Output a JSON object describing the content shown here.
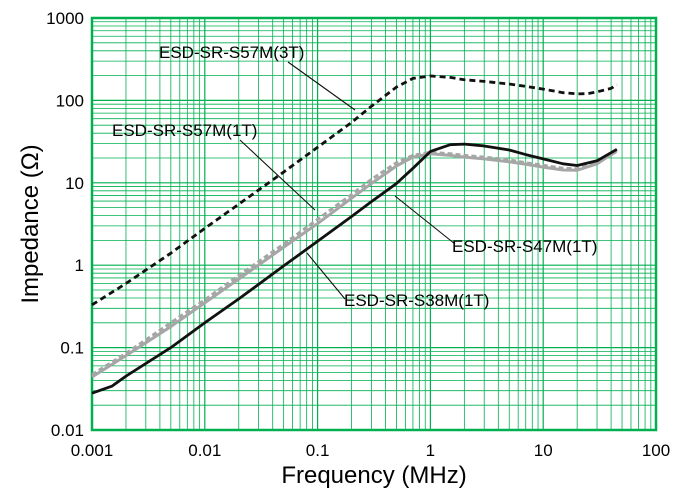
{
  "chart_data": {
    "type": "line",
    "title": "",
    "xlabel": "Frequency (MHz)",
    "ylabel": "Impedance (Ω)",
    "x_scale": "log",
    "y_scale": "log",
    "xlim": [
      0.001,
      100
    ],
    "ylim": [
      0.01,
      1000
    ],
    "grid": true,
    "legend": "none (series labelled by annotations with leader lines)",
    "x_ticks": [
      "0.001",
      "0.01",
      "0.1",
      "1",
      "10",
      "100"
    ],
    "y_ticks": [
      "0.01",
      "0.1",
      "1",
      "10",
      "100",
      "1000"
    ],
    "colors": {
      "grid": "#00B050",
      "frame": "#00B050",
      "black": "#111111",
      "gray_solid": "#A6A6A6",
      "gray_dashed": "#A6A6A6"
    },
    "series": [
      {
        "name": "ESD-SR-S57M(3T)",
        "style": "dashed",
        "color": "black",
        "points": [
          [
            0.001,
            0.33
          ],
          [
            0.002,
            0.6
          ],
          [
            0.005,
            1.4
          ],
          [
            0.01,
            2.8
          ],
          [
            0.02,
            5.5
          ],
          [
            0.05,
            13.5
          ],
          [
            0.1,
            27
          ],
          [
            0.2,
            54
          ],
          [
            0.3,
            85
          ],
          [
            0.5,
            145
          ],
          [
            0.7,
            185
          ],
          [
            1,
            198
          ],
          [
            1.5,
            190
          ],
          [
            2,
            178
          ],
          [
            3,
            170
          ],
          [
            5,
            158
          ],
          [
            7,
            148
          ],
          [
            10,
            137
          ],
          [
            15,
            124
          ],
          [
            20,
            120
          ],
          [
            25,
            121
          ],
          [
            30,
            127
          ],
          [
            40,
            140
          ],
          [
            45,
            155
          ]
        ]
      },
      {
        "name": "ESD-SR-S57M(1T)",
        "style": "dashed",
        "color": "gray",
        "points": [
          [
            0.001,
            0.047
          ],
          [
            0.002,
            0.085
          ],
          [
            0.005,
            0.2
          ],
          [
            0.01,
            0.38
          ],
          [
            0.02,
            0.75
          ],
          [
            0.05,
            1.8
          ],
          [
            0.1,
            3.6
          ],
          [
            0.2,
            7.2
          ],
          [
            0.3,
            11
          ],
          [
            0.5,
            17.5
          ],
          [
            0.7,
            21.5
          ],
          [
            1,
            23.5
          ],
          [
            1.5,
            22.5
          ],
          [
            2,
            21.5
          ],
          [
            3,
            20.5
          ],
          [
            5,
            19
          ],
          [
            7,
            17.5
          ],
          [
            10,
            16.3
          ],
          [
            15,
            15
          ],
          [
            20,
            14.8
          ],
          [
            30,
            17.5
          ],
          [
            45,
            24
          ]
        ]
      },
      {
        "name": "ESD-SR-S47M(1T)",
        "style": "solid",
        "color": "gray",
        "points": [
          [
            0.001,
            0.044
          ],
          [
            0.002,
            0.08
          ],
          [
            0.005,
            0.18
          ],
          [
            0.01,
            0.35
          ],
          [
            0.02,
            0.68
          ],
          [
            0.05,
            1.65
          ],
          [
            0.1,
            3.2
          ],
          [
            0.2,
            6.5
          ],
          [
            0.3,
            9.8
          ],
          [
            0.5,
            16
          ],
          [
            0.7,
            20.5
          ],
          [
            1,
            22.5
          ],
          [
            1.5,
            21.5
          ],
          [
            2,
            20.5
          ],
          [
            3,
            19.5
          ],
          [
            5,
            18
          ],
          [
            7,
            16.8
          ],
          [
            10,
            15.5
          ],
          [
            15,
            14.3
          ],
          [
            20,
            14.2
          ],
          [
            30,
            17
          ],
          [
            45,
            24.5
          ]
        ]
      },
      {
        "name": "ESD-SR-S38M(1T)",
        "style": "solid",
        "color": "black",
        "points": [
          [
            0.001,
            0.028
          ],
          [
            0.0015,
            0.034
          ],
          [
            0.002,
            0.045
          ],
          [
            0.005,
            0.1
          ],
          [
            0.01,
            0.2
          ],
          [
            0.02,
            0.39
          ],
          [
            0.05,
            0.98
          ],
          [
            0.1,
            1.95
          ],
          [
            0.2,
            3.9
          ],
          [
            0.3,
            5.9
          ],
          [
            0.5,
            9.8
          ],
          [
            0.7,
            15
          ],
          [
            1,
            24
          ],
          [
            1.5,
            29
          ],
          [
            2,
            29.5
          ],
          [
            3,
            28
          ],
          [
            5,
            25
          ],
          [
            7,
            22
          ],
          [
            10,
            19.5
          ],
          [
            15,
            17
          ],
          [
            20,
            16.2
          ],
          [
            30,
            18.5
          ],
          [
            45,
            25.5
          ]
        ]
      }
    ]
  }
}
